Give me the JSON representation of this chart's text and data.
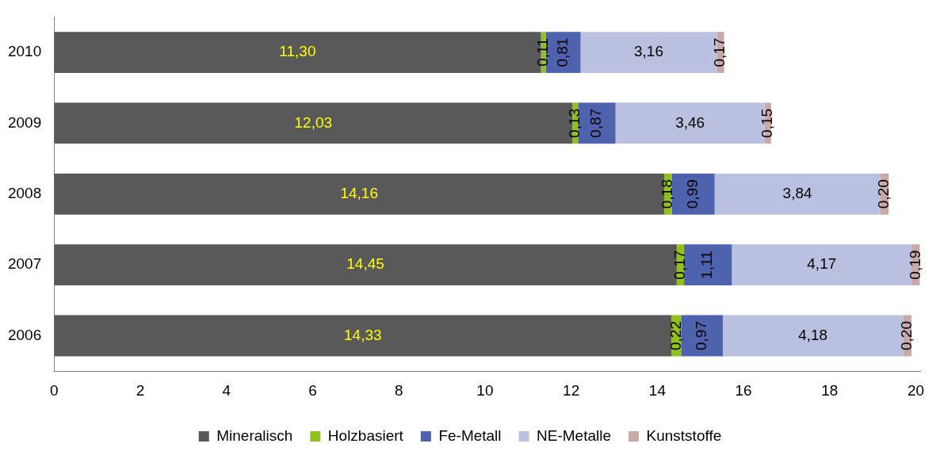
{
  "chart_data": {
    "type": "bar",
    "orientation": "horizontal",
    "stacked": true,
    "categories": [
      "2010",
      "2009",
      "2008",
      "2007",
      "2006"
    ],
    "series": [
      {
        "name": "Mineralisch",
        "color": "#595959",
        "values": [
          11.3,
          12.03,
          14.16,
          14.45,
          14.33
        ],
        "value_labels": [
          "11,30",
          "12,03",
          "14,16",
          "14,45",
          "14,33"
        ]
      },
      {
        "name": "Holzbasiert",
        "color": "#92c01f",
        "values": [
          0.11,
          0.13,
          0.18,
          0.17,
          0.22
        ],
        "value_labels": [
          "0,11",
          "0,13",
          "0,18",
          "0,17",
          "0,22"
        ]
      },
      {
        "name": "Fe-Metall",
        "color": "#4f62ad",
        "values": [
          0.81,
          0.87,
          0.99,
          1.11,
          0.97
        ],
        "value_labels": [
          "0,81",
          "0,87",
          "0,99",
          "1,11",
          "0,97"
        ]
      },
      {
        "name": "NE-Metalle",
        "color": "#b9c0e0",
        "values": [
          3.16,
          3.46,
          3.84,
          4.17,
          4.18
        ],
        "value_labels": [
          "3,16",
          "3,46",
          "3,84",
          "4,17",
          "4,18"
        ]
      },
      {
        "name": "Kunststoffe",
        "color": "#c9a8a8",
        "values": [
          0.17,
          0.15,
          0.2,
          0.19,
          0.2
        ],
        "value_labels": [
          "0,17",
          "0,15",
          "0,20",
          "0,19",
          "0,20"
        ]
      }
    ],
    "xlim": [
      0,
      20.1
    ],
    "xticks": [
      0,
      2,
      4,
      6,
      8,
      10,
      12,
      14,
      16,
      18,
      20
    ],
    "grid": false,
    "legend": "bottom"
  }
}
